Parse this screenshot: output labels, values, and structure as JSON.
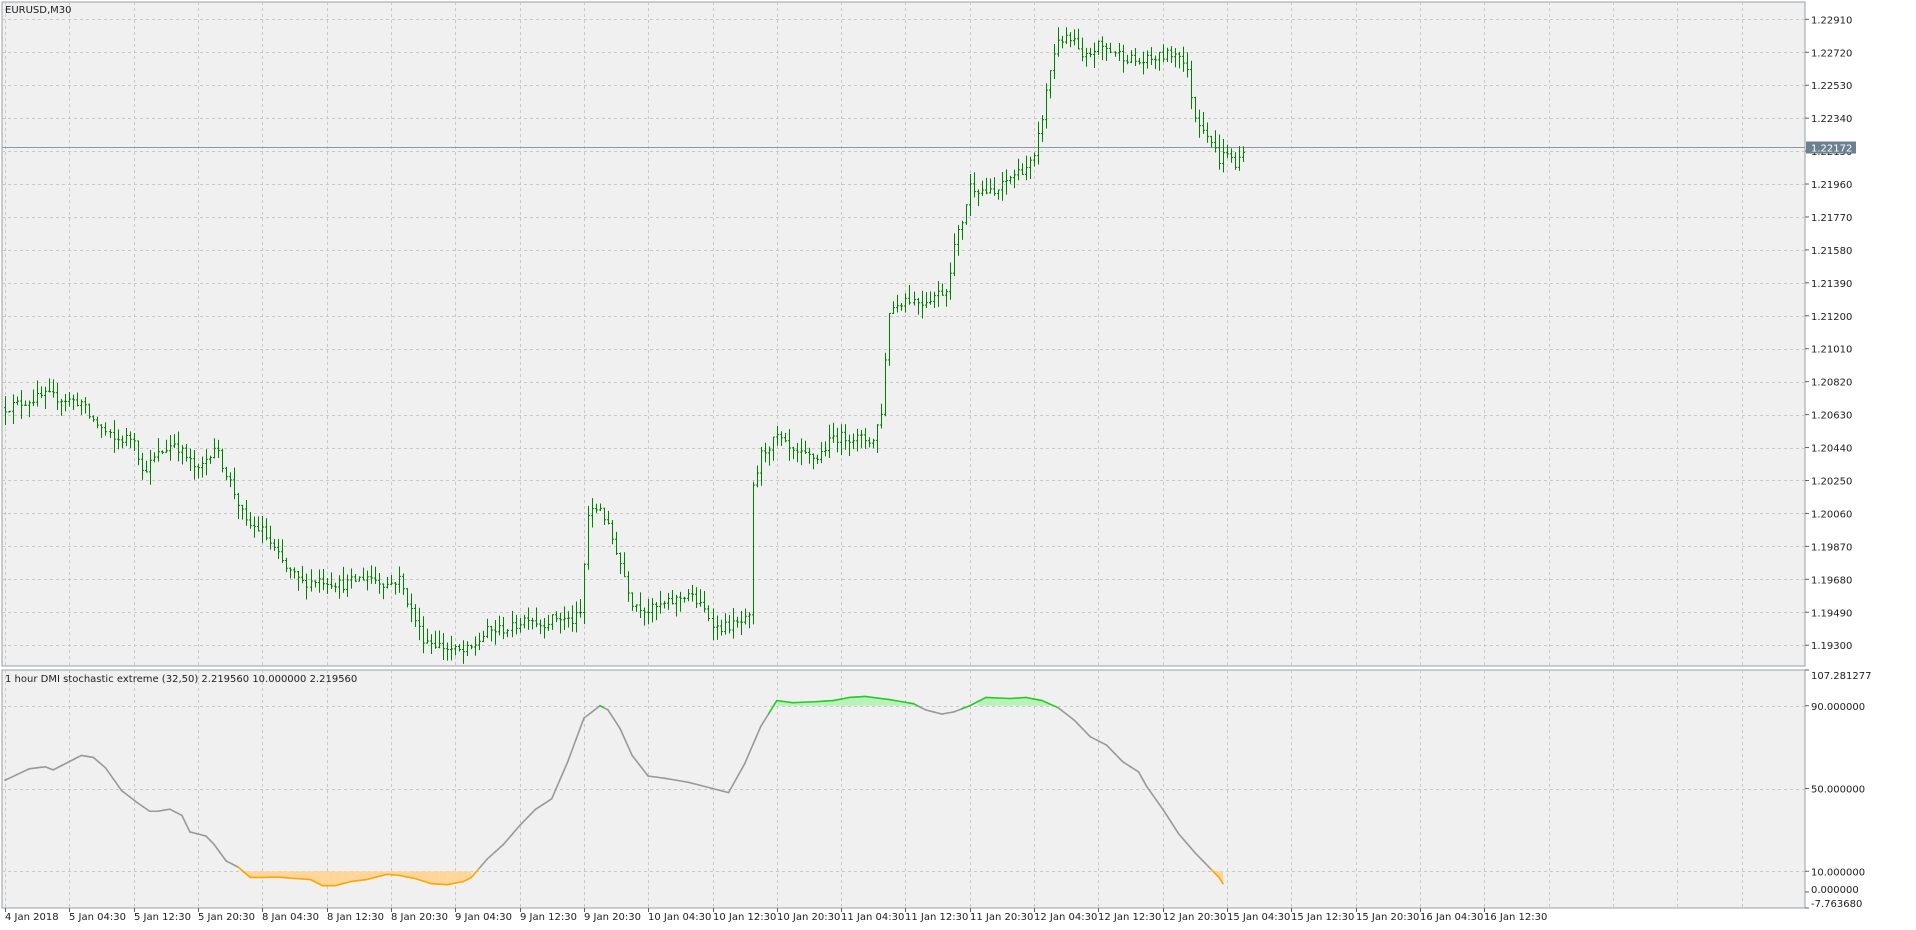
{
  "window": {
    "symbol_label": "EURUSD,M30",
    "indicator_label": "1 hour DMI stochastic extreme (32,50) 2.219560 10.000000 2.219560"
  },
  "colors": {
    "background": "#f0f0f0",
    "grid": "#c8c8c8",
    "bar": "#008000",
    "osc_neutral": "#999999",
    "osc_high": "#22cc22",
    "osc_high_fill": "#b9f2b9",
    "osc_low": "#ffa500",
    "osc_low_fill": "#ffd699",
    "price_line": "#8a9aa8",
    "price_tag_bg": "#6d8092"
  },
  "chart_data": [
    {
      "type": "ohlc",
      "timeframe": "M30",
      "ylim": [
        1.1918,
        1.2301
      ],
      "y_ticks": [
        "1.22910",
        "1.22720",
        "1.22530",
        "1.22340",
        "1.22150",
        "1.21960",
        "1.21770",
        "1.21580",
        "1.21390",
        "1.21200",
        "1.21010",
        "1.20820",
        "1.20630",
        "1.20440",
        "1.20250",
        "1.20060",
        "1.19870",
        "1.19680",
        "1.19490",
        "1.19300"
      ],
      "current_price": "1.22172",
      "x_labels": [
        "4 Jan 2018",
        "5 Jan 04:30",
        "5 Jan 12:30",
        "5 Jan 20:30",
        "8 Jan 04:30",
        "8 Jan 12:30",
        "8 Jan 20:30",
        "9 Jan 04:30",
        "9 Jan 12:30",
        "9 Jan 20:30",
        "10 Jan 04:30",
        "10 Jan 12:30",
        "10 Jan 20:30",
        "11 Jan 04:30",
        "11 Jan 12:30",
        "11 Jan 20:30",
        "12 Jan 04:30",
        "12 Jan 12:30",
        "12 Jan 20:30",
        "15 Jan 04:30",
        "15 Jan 12:30",
        "15 Jan 20:30",
        "16 Jan 04:30",
        "16 Jan 12:30"
      ],
      "close_path": [
        [
          0,
          1.2067
        ],
        [
          10,
          1.2074
        ],
        [
          19,
          1.207
        ],
        [
          21,
          1.2062
        ],
        [
          27,
          1.2048
        ],
        [
          32,
          1.205
        ],
        [
          34,
          1.203
        ],
        [
          38,
          1.204
        ],
        [
          42,
          1.2047
        ],
        [
          48,
          1.203
        ],
        [
          52,
          1.2045
        ],
        [
          56,
          1.2024
        ],
        [
          60,
          1.2
        ],
        [
          64,
          1.1996
        ],
        [
          70,
          1.1974
        ],
        [
          74,
          1.1966
        ],
        [
          78,
          1.1968
        ],
        [
          84,
          1.1965
        ],
        [
          90,
          1.197
        ],
        [
          95,
          1.1965
        ],
        [
          98,
          1.1968
        ],
        [
          101,
          1.195
        ],
        [
          104,
          1.1934
        ],
        [
          110,
          1.1928
        ],
        [
          114,
          1.1926
        ],
        [
          116,
          1.1928
        ],
        [
          120,
          1.1938
        ],
        [
          126,
          1.194
        ],
        [
          130,
          1.1947
        ],
        [
          133,
          1.1942
        ],
        [
          137,
          1.1946
        ],
        [
          141,
          1.1944
        ],
        [
          143,
          1.1948
        ],
        [
          145,
          1.2005
        ],
        [
          148,
          1.201
        ],
        [
          152,
          1.1985
        ],
        [
          156,
          1.1955
        ],
        [
          160,
          1.195
        ],
        [
          166,
          1.1955
        ],
        [
          170,
          1.196
        ],
        [
          174,
          1.195
        ],
        [
          177,
          1.194
        ],
        [
          182,
          1.1942
        ],
        [
          185,
          1.1945
        ],
        [
          186,
          1.202
        ],
        [
          188,
          1.204
        ],
        [
          192,
          1.205
        ],
        [
          196,
          1.204
        ],
        [
          202,
          1.2038
        ],
        [
          206,
          1.205
        ],
        [
          210,
          1.205
        ],
        [
          216,
          1.2048
        ],
        [
          218,
          1.2065
        ],
        [
          220,
          1.2123
        ],
        [
          224,
          1.213
        ],
        [
          228,
          1.2128
        ],
        [
          232,
          1.2133
        ],
        [
          234,
          1.2135
        ],
        [
          236,
          1.216
        ],
        [
          238,
          1.2175
        ],
        [
          240,
          1.2195
        ],
        [
          246,
          1.219
        ],
        [
          250,
          1.22
        ],
        [
          254,
          1.2206
        ],
        [
          256,
          1.221
        ],
        [
          258,
          1.2235
        ],
        [
          260,
          1.2262
        ],
        [
          262,
          1.228
        ],
        [
          266,
          1.2278
        ],
        [
          268,
          1.2267
        ],
        [
          272,
          1.2276
        ],
        [
          276,
          1.2272
        ],
        [
          282,
          1.2266
        ],
        [
          288,
          1.227
        ],
        [
          292,
          1.2272
        ],
        [
          294,
          1.226
        ],
        [
          296,
          1.2235
        ],
        [
          299,
          1.2226
        ],
        [
          302,
          1.221
        ],
        [
          304,
          1.2215
        ],
        [
          306,
          1.2205
        ],
        [
          308,
          1.2217
        ]
      ],
      "total_bars": 309
    },
    {
      "type": "line",
      "name": "1 hour DMI stochastic extreme (32,50)",
      "ylim": [
        -7.76368,
        107.281277
      ],
      "y_ticks": [
        "107.281277",
        "90.000000",
        "50.000000",
        "10.000000",
        "0.000000",
        "-7.763680"
      ],
      "levels": [
        90,
        10
      ],
      "points": [
        [
          0,
          54
        ],
        [
          6,
          59.5
        ],
        [
          10,
          60.5
        ],
        [
          12,
          59
        ],
        [
          16,
          63
        ],
        [
          19,
          66
        ],
        [
          22,
          65
        ],
        [
          25,
          60
        ],
        [
          29,
          49
        ],
        [
          33,
          43
        ],
        [
          36,
          39
        ],
        [
          38,
          39
        ],
        [
          41,
          40
        ],
        [
          44,
          37
        ],
        [
          46,
          29
        ],
        [
          50,
          27
        ],
        [
          52,
          23
        ],
        [
          55,
          15
        ],
        [
          58,
          12
        ],
        [
          61,
          7
        ],
        [
          64,
          7
        ],
        [
          68,
          7.2
        ],
        [
          72,
          6.5
        ],
        [
          76,
          6
        ],
        [
          79,
          3
        ],
        [
          82,
          3
        ],
        [
          86,
          5
        ],
        [
          90,
          6
        ],
        [
          95,
          8.5
        ],
        [
          98,
          8
        ],
        [
          102,
          6.5
        ],
        [
          106,
          4
        ],
        [
          110,
          3.5
        ],
        [
          114,
          5
        ],
        [
          116,
          7
        ],
        [
          120,
          16
        ],
        [
          124,
          23
        ],
        [
          128,
          32
        ],
        [
          132,
          40
        ],
        [
          136,
          45
        ],
        [
          140,
          63
        ],
        [
          144,
          84
        ],
        [
          148,
          90
        ],
        [
          150,
          88
        ],
        [
          153,
          79
        ],
        [
          156,
          66
        ],
        [
          160,
          56
        ],
        [
          164,
          55
        ],
        [
          170,
          53
        ],
        [
          176,
          50
        ],
        [
          180,
          48
        ],
        [
          184,
          62
        ],
        [
          188,
          80
        ],
        [
          192,
          92.5
        ],
        [
          196,
          91.5
        ],
        [
          202,
          92
        ],
        [
          206,
          92.5
        ],
        [
          210,
          94
        ],
        [
          214,
          94.5
        ],
        [
          220,
          93
        ],
        [
          226,
          91
        ],
        [
          229,
          88
        ],
        [
          233,
          86
        ],
        [
          236,
          87
        ],
        [
          240,
          90
        ],
        [
          244,
          94
        ],
        [
          250,
          93.5
        ],
        [
          254,
          94
        ],
        [
          258,
          92.5
        ],
        [
          262,
          89
        ],
        [
          266,
          83
        ],
        [
          270,
          75
        ],
        [
          274,
          71
        ],
        [
          278,
          63
        ],
        [
          282,
          58
        ],
        [
          284,
          51
        ],
        [
          288,
          40
        ],
        [
          292,
          28
        ],
        [
          296,
          19
        ],
        [
          300,
          11
        ],
        [
          302,
          7
        ],
        [
          303,
          4
        ]
      ]
    }
  ]
}
